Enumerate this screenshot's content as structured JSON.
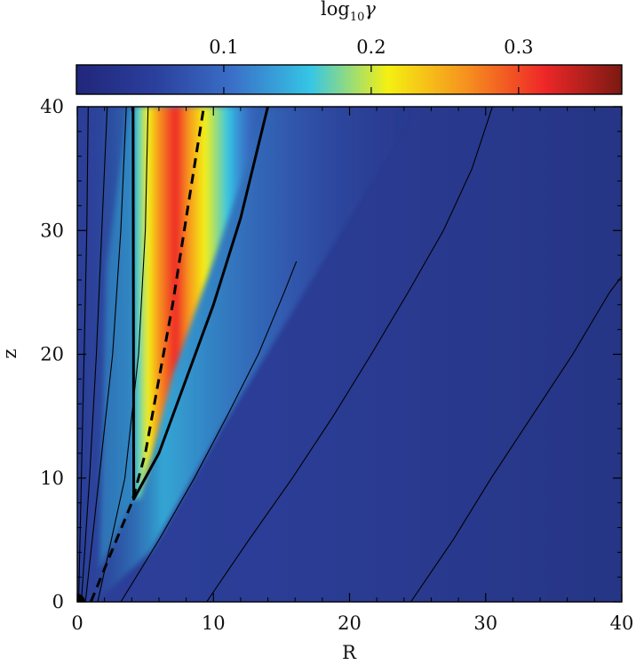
{
  "chart_data": {
    "type": "heatmap",
    "colorbar": {
      "label_base": "log",
      "label_sub": "10",
      "label_var": "γ",
      "range": [
        0.0,
        0.37
      ],
      "ticks": [
        {
          "value": 0.1,
          "label": "0.1"
        },
        {
          "value": 0.2,
          "label": "0.2"
        },
        {
          "value": 0.3,
          "label": "0.3"
        }
      ],
      "colormap": [
        "#21267a",
        "#2a3f9c",
        "#3a6fc8",
        "#35c6e6",
        "#f5f012",
        "#f6921e",
        "#ef2728",
        "#7a1a12"
      ]
    },
    "xlabel": "R",
    "ylabel": "z",
    "xlim": [
      0,
      40
    ],
    "ylim": [
      0,
      40
    ],
    "xticks": [
      {
        "value": 0,
        "label": "0"
      },
      {
        "value": 10,
        "label": "10"
      },
      {
        "value": 20,
        "label": "20"
      },
      {
        "value": 30,
        "label": "30"
      },
      {
        "value": 40,
        "label": "40"
      }
    ],
    "yticks": [
      {
        "value": 0,
        "label": "0"
      },
      {
        "value": 10,
        "label": "10"
      },
      {
        "value": 20,
        "label": "20"
      },
      {
        "value": 30,
        "label": "30"
      },
      {
        "value": 40,
        "label": "40"
      }
    ],
    "field_lines_thin": [
      [
        [
          0.1,
          0
        ],
        [
          0.3,
          10
        ],
        [
          0.5,
          20
        ],
        [
          0.7,
          30
        ],
        [
          0.8,
          40
        ]
      ],
      [
        [
          0.3,
          0
        ],
        [
          0.9,
          10
        ],
        [
          1.4,
          20
        ],
        [
          1.8,
          30
        ],
        [
          2.2,
          40
        ]
      ],
      [
        [
          0.6,
          0
        ],
        [
          1.6,
          10
        ],
        [
          2.6,
          20
        ],
        [
          3.2,
          30
        ],
        [
          3.6,
          40
        ]
      ],
      [
        [
          1.5,
          0
        ],
        [
          3.5,
          10
        ],
        [
          4.5,
          20
        ],
        [
          5.0,
          30
        ],
        [
          5.2,
          40
        ]
      ],
      [
        [
          3.2,
          0
        ],
        [
          6.0,
          5
        ],
        [
          8.6,
          10
        ],
        [
          11.0,
          15
        ],
        [
          13.3,
          20
        ],
        [
          15.2,
          25
        ],
        [
          16.1,
          27.5
        ]
      ],
      [
        [
          9.5,
          0
        ],
        [
          12.6,
          5
        ],
        [
          15.8,
          10
        ],
        [
          18.8,
          15
        ],
        [
          21.6,
          20
        ],
        [
          24.3,
          25
        ],
        [
          26.9,
          30
        ],
        [
          29.0,
          35
        ],
        [
          30.5,
          40
        ]
      ],
      [
        [
          24.5,
          0
        ],
        [
          27.6,
          5
        ],
        [
          30.4,
          10
        ],
        [
          33.4,
          15
        ],
        [
          36.4,
          20
        ],
        [
          39.1,
          25
        ],
        [
          40.0,
          26.3
        ]
      ]
    ],
    "boundary_thick": [
      [
        4.1,
        40
      ],
      [
        4.15,
        8.3
      ],
      [
        6.0,
        12.0
      ],
      [
        8.0,
        18.0
      ],
      [
        10.0,
        24.0
      ],
      [
        12.0,
        31.0
      ],
      [
        14.0,
        40
      ]
    ],
    "light_cylinder_dashed": [
      [
        1.0,
        0
      ],
      [
        2.5,
        4
      ],
      [
        4.0,
        8
      ],
      [
        5.0,
        12
      ],
      [
        6.0,
        18
      ],
      [
        7.0,
        24
      ],
      [
        8.0,
        31
      ],
      [
        9.3,
        40
      ]
    ],
    "origin_marker": [
      0,
      0
    ],
    "annotations": []
  }
}
